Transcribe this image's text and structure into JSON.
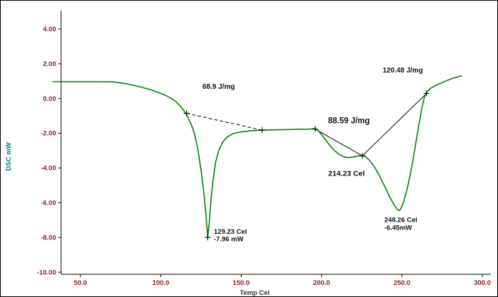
{
  "figure": {
    "background": "#ffffff",
    "border_color": "#000000"
  },
  "chart_data": {
    "type": "line",
    "title": "",
    "xlabel": "Temp Cel",
    "ylabel": "DSC mW",
    "xlim": [
      38,
      305.3
    ],
    "ylim": [
      -10.12,
      5.06
    ],
    "xticks": [
      50,
      100,
      150,
      200,
      250,
      300
    ],
    "xtick_labels": [
      "50.0",
      "100.0",
      "150.0",
      "200.0",
      "250.0",
      "300.0"
    ],
    "yticks": [
      4,
      2,
      0,
      -2,
      -4,
      -6,
      -8,
      -10
    ],
    "ytick_labels": [
      "4.00",
      "2.00",
      "0.00",
      "-2.00",
      "-4.00",
      "-6.00",
      "-8.00",
      "-10.00"
    ],
    "grid": false,
    "legend": "none",
    "colors": {
      "curve": "#008200",
      "axis": "#000000",
      "tick_labels": "#8b1a1a",
      "xlabel": "#333333",
      "ylabel": "#007878",
      "annotation": "#111111",
      "baseline": "#000000"
    },
    "series": [
      {
        "name": "DSC signal",
        "color": "#008200",
        "points": [
          [
            33,
            0.97
          ],
          [
            45,
            0.97
          ],
          [
            60,
            0.97
          ],
          [
            70,
            0.96
          ],
          [
            75,
            0.9
          ],
          [
            80,
            0.82
          ],
          [
            85,
            0.72
          ],
          [
            90,
            0.6
          ],
          [
            95,
            0.47
          ],
          [
            99,
            0.33
          ],
          [
            103,
            0.18
          ],
          [
            106,
            0.04
          ],
          [
            109,
            -0.15
          ],
          [
            112,
            -0.42
          ],
          [
            114,
            -0.65
          ],
          [
            115.5,
            -0.85
          ],
          [
            117,
            -1.1
          ],
          [
            119,
            -1.5
          ],
          [
            121,
            -2.05
          ],
          [
            123,
            -2.9
          ],
          [
            125,
            -4.1
          ],
          [
            126.5,
            -5.2
          ],
          [
            128,
            -6.6
          ],
          [
            129.2,
            -7.96
          ],
          [
            130.2,
            -7.1
          ],
          [
            131.2,
            -5.9
          ],
          [
            132.5,
            -4.7
          ],
          [
            134,
            -3.7
          ],
          [
            136,
            -3.0
          ],
          [
            138.5,
            -2.5
          ],
          [
            141.5,
            -2.2
          ],
          [
            145,
            -2.02
          ],
          [
            150,
            -1.92
          ],
          [
            156,
            -1.86
          ],
          [
            163,
            -1.82
          ],
          [
            170,
            -1.8
          ],
          [
            178,
            -1.79
          ],
          [
            186,
            -1.77
          ],
          [
            192,
            -1.76
          ],
          [
            195.5,
            -1.74
          ],
          [
            197.5,
            -1.82
          ],
          [
            199.5,
            -2.02
          ],
          [
            202,
            -2.32
          ],
          [
            205,
            -2.68
          ],
          [
            208,
            -3.0
          ],
          [
            211,
            -3.22
          ],
          [
            214,
            -3.36
          ],
          [
            217,
            -3.4
          ],
          [
            220,
            -3.36
          ],
          [
            223,
            -3.3
          ],
          [
            225.5,
            -3.28
          ],
          [
            227.5,
            -3.36
          ],
          [
            230,
            -3.58
          ],
          [
            233,
            -3.95
          ],
          [
            236,
            -4.45
          ],
          [
            239,
            -5.0
          ],
          [
            242,
            -5.6
          ],
          [
            245,
            -6.1
          ],
          [
            247,
            -6.38
          ],
          [
            248.3,
            -6.45
          ],
          [
            249.6,
            -6.3
          ],
          [
            251,
            -5.95
          ],
          [
            253,
            -5.3
          ],
          [
            255,
            -4.45
          ],
          [
            257,
            -3.45
          ],
          [
            259,
            -2.35
          ],
          [
            261,
            -1.25
          ],
          [
            262.7,
            -0.4
          ],
          [
            264,
            0.1
          ],
          [
            265.5,
            0.4
          ],
          [
            268,
            0.6
          ],
          [
            272,
            0.8
          ],
          [
            277,
            1.0
          ],
          [
            282,
            1.18
          ],
          [
            287,
            1.3
          ]
        ]
      }
    ],
    "baselines": [
      {
        "x1": 116,
        "y1": -0.85,
        "x2": 163,
        "y2": -1.82,
        "style": "dashed"
      },
      {
        "x1": 196,
        "y1": -1.76,
        "x2": 225.4,
        "y2": -3.3,
        "style": "solid"
      },
      {
        "x1": 225.4,
        "y1": -3.3,
        "x2": 265.3,
        "y2": 0.3,
        "style": "solid"
      }
    ],
    "markers": [
      [
        116,
        -0.85
      ],
      [
        163,
        -1.82
      ],
      [
        196,
        -1.76
      ],
      [
        225.4,
        -3.3
      ],
      [
        265.3,
        0.3
      ],
      [
        129.2,
        -8.0
      ]
    ],
    "annotations": [
      {
        "text": "68.9 J/mg",
        "x": 136,
        "y": 0.55,
        "anchor": "middle",
        "size": 10
      },
      {
        "text": "120.48 J/mg",
        "x": 250.5,
        "y": 1.5,
        "anchor": "middle",
        "size": 10
      },
      {
        "text": "88.59 J/mg",
        "x": 217,
        "y": -1.42,
        "anchor": "middle",
        "size": 11.5
      },
      {
        "text": "214.23 Cel",
        "x": 215.5,
        "y": -4.45,
        "anchor": "middle",
        "size": 10.5
      },
      {
        "text": "129.23 Cel",
        "x": 133,
        "y": -7.78,
        "anchor": "start",
        "size": 9.5
      },
      {
        "text": "-7.96 mW",
        "x": 133,
        "y": -8.22,
        "anchor": "start",
        "size": 9.5
      },
      {
        "text": "248.26 Cel",
        "x": 239,
        "y": -7.12,
        "anchor": "start",
        "size": 9.5
      },
      {
        "text": "-6.45mW",
        "x": 239,
        "y": -7.56,
        "anchor": "start",
        "size": 9.5
      }
    ]
  }
}
